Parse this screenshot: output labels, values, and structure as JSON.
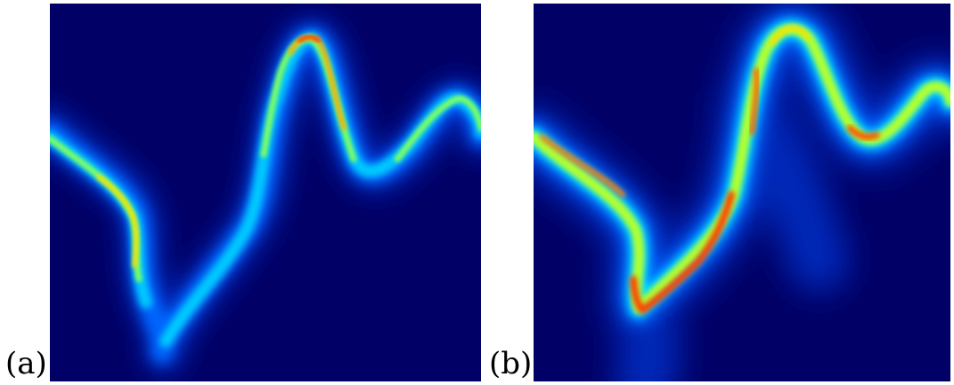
{
  "figure": {
    "panels": [
      {
        "label": "(a)",
        "colormap": "jet",
        "background_color": "#000066"
      },
      {
        "label": "(b)",
        "colormap": "jet",
        "background_color": "#000066"
      }
    ]
  }
}
